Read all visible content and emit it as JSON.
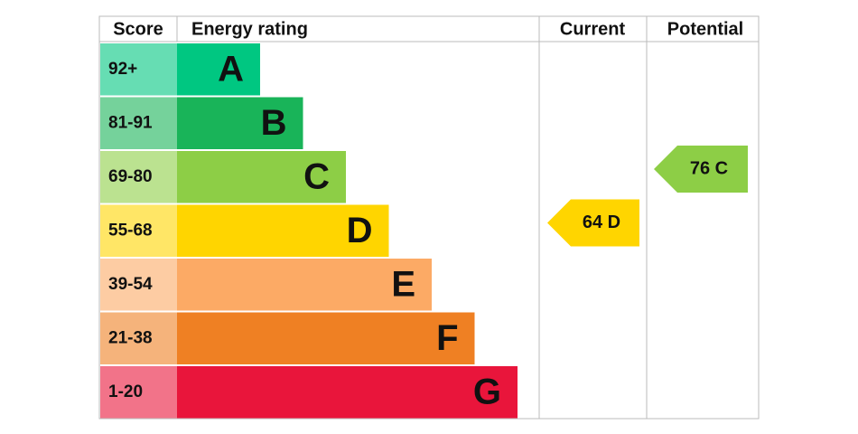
{
  "chart_data": {
    "type": "epc",
    "headers": [
      "Score",
      "Energy rating",
      "Current",
      "Potential"
    ],
    "bands": [
      {
        "score": "92+",
        "letter": "A",
        "color": "#00c781"
      },
      {
        "score": "81-91",
        "letter": "B",
        "color": "#19b459"
      },
      {
        "score": "69-80",
        "letter": "C",
        "color": "#8dce46"
      },
      {
        "score": "55-68",
        "letter": "D",
        "color": "#ffd500"
      },
      {
        "score": "39-54",
        "letter": "E",
        "color": "#fcaa65"
      },
      {
        "score": "21-38",
        "letter": "F",
        "color": "#ef8023"
      },
      {
        "score": "1-20",
        "letter": "G",
        "color": "#e9153b"
      }
    ],
    "current": "64 D",
    "potential": "76 C"
  }
}
